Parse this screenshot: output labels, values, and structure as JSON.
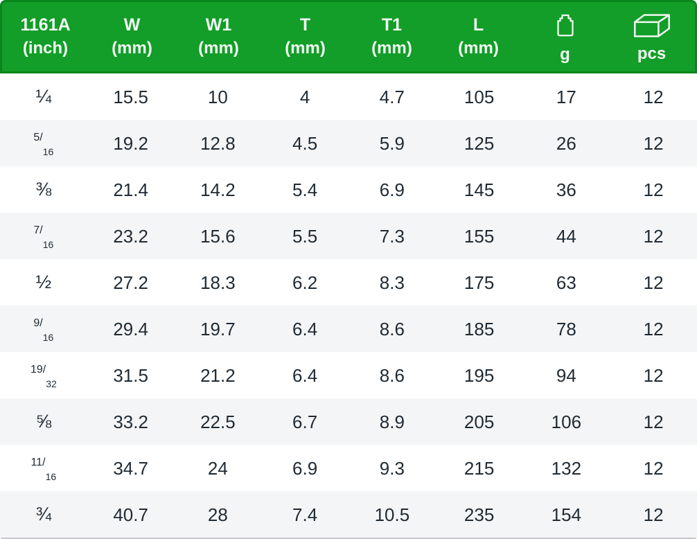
{
  "chart_data": {
    "type": "table",
    "columns": [
      {
        "id": "size",
        "line1": "1161A",
        "line2": "(inch)"
      },
      {
        "id": "w",
        "line1": "W",
        "line2": "(mm)"
      },
      {
        "id": "w1",
        "line1": "W1",
        "line2": "(mm)"
      },
      {
        "id": "t",
        "line1": "T",
        "line2": "(mm)"
      },
      {
        "id": "t1",
        "line1": "T1",
        "line2": "(mm)"
      },
      {
        "id": "l",
        "line1": "L",
        "line2": "(mm)"
      },
      {
        "id": "g",
        "icon": "weight-icon",
        "line2": "g"
      },
      {
        "id": "pcs",
        "icon": "package-icon",
        "line2": "pcs"
      }
    ],
    "rows": [
      {
        "size": "1/4",
        "size_glyph": "¼",
        "w": "15.5",
        "w1": "10",
        "t": "4",
        "t1": "4.7",
        "l": "105",
        "g": "17",
        "pcs": "12"
      },
      {
        "size": "5/16",
        "size_num": "5",
        "size_den": "16",
        "w": "19.2",
        "w1": "12.8",
        "t": "4.5",
        "t1": "5.9",
        "l": "125",
        "g": "26",
        "pcs": "12"
      },
      {
        "size": "3/8",
        "size_glyph": "⅜",
        "w": "21.4",
        "w1": "14.2",
        "t": "5.4",
        "t1": "6.9",
        "l": "145",
        "g": "36",
        "pcs": "12"
      },
      {
        "size": "7/16",
        "size_num": "7",
        "size_den": "16",
        "w": "23.2",
        "w1": "15.6",
        "t": "5.5",
        "t1": "7.3",
        "l": "155",
        "g": "44",
        "pcs": "12"
      },
      {
        "size": "1/2",
        "size_glyph": "½",
        "w": "27.2",
        "w1": "18.3",
        "t": "6.2",
        "t1": "8.3",
        "l": "175",
        "g": "63",
        "pcs": "12"
      },
      {
        "size": "9/16",
        "size_num": "9",
        "size_den": "16",
        "w": "29.4",
        "w1": "19.7",
        "t": "6.4",
        "t1": "8.6",
        "l": "185",
        "g": "78",
        "pcs": "12"
      },
      {
        "size": "19/32",
        "size_num": "19",
        "size_den": "32",
        "w": "31.5",
        "w1": "21.2",
        "t": "6.4",
        "t1": "8.6",
        "l": "195",
        "g": "94",
        "pcs": "12"
      },
      {
        "size": "5/8",
        "size_glyph": "⅝",
        "w": "33.2",
        "w1": "22.5",
        "t": "6.7",
        "t1": "8.9",
        "l": "205",
        "g": "106",
        "pcs": "12"
      },
      {
        "size": "11/16",
        "size_num": "11",
        "size_den": "16",
        "w": "34.7",
        "w1": "24",
        "t": "6.9",
        "t1": "9.3",
        "l": "215",
        "g": "132",
        "pcs": "12"
      },
      {
        "size": "3/4",
        "size_glyph": "¾",
        "w": "40.7",
        "w1": "28",
        "t": "7.4",
        "t1": "10.5",
        "l": "235",
        "g": "154",
        "pcs": "12"
      }
    ]
  },
  "colors": {
    "header_bg": "#129e28",
    "header_border": "#0b861c",
    "header_text": "#f2faf2",
    "row_bg": "#ffffff",
    "row_alt_bg": "#f4f5f6",
    "cell_text": "#1f2a33",
    "bottom_edge": "#c3c6c8"
  }
}
